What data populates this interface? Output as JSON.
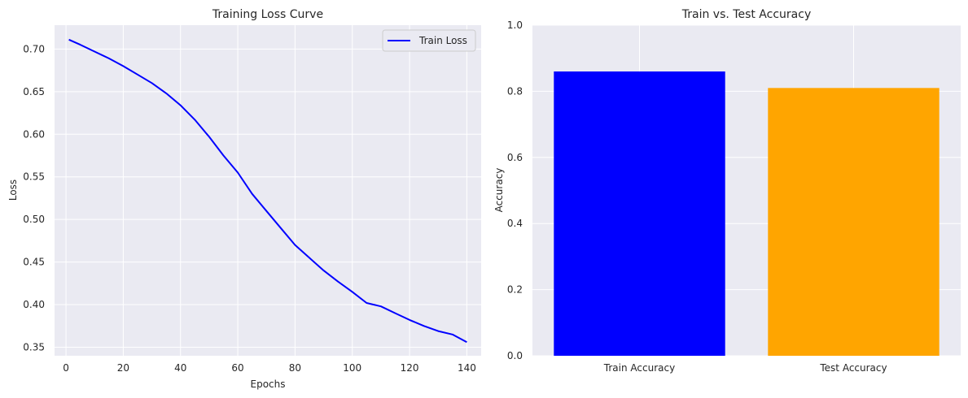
{
  "figure": {
    "background": "#ffffff",
    "axes_background": "#eaeaf2",
    "grid_color": "#ffffff"
  },
  "chart_data": [
    {
      "type": "line",
      "title": "Training Loss Curve",
      "xlabel": "Epochs",
      "ylabel": "Loss",
      "xlim": [
        -4,
        145
      ],
      "ylim": [
        0.34,
        0.728
      ],
      "xticks": [
        0,
        20,
        40,
        60,
        80,
        100,
        120,
        140
      ],
      "yticks": [
        0.35,
        0.4,
        0.45,
        0.5,
        0.55,
        0.6,
        0.65,
        0.7
      ],
      "ytick_labels": [
        "0.35",
        "0.40",
        "0.45",
        "0.50",
        "0.55",
        "0.60",
        "0.65",
        "0.70"
      ],
      "grid": true,
      "legend": "top-right",
      "series": [
        {
          "name": "Train Loss",
          "color": "#0000ff",
          "x": [
            1,
            5,
            10,
            15,
            20,
            25,
            30,
            35,
            40,
            45,
            50,
            55,
            60,
            65,
            70,
            75,
            80,
            85,
            90,
            95,
            100,
            105,
            110,
            115,
            120,
            125,
            130,
            135,
            140
          ],
          "y": [
            0.711,
            0.705,
            0.697,
            0.689,
            0.68,
            0.67,
            0.66,
            0.648,
            0.634,
            0.617,
            0.597,
            0.575,
            0.555,
            0.53,
            0.51,
            0.49,
            0.47,
            0.455,
            0.44,
            0.427,
            0.415,
            0.402,
            0.398,
            0.39,
            0.382,
            0.375,
            0.369,
            0.365,
            0.356
          ]
        }
      ]
    },
    {
      "type": "bar",
      "title": "Train vs. Test Accuracy",
      "xlabel": "",
      "ylabel": "Accuracy",
      "categories": [
        "Train Accuracy",
        "Test Accuracy"
      ],
      "values": [
        0.86,
        0.81
      ],
      "colors": [
        "#0000ff",
        "#ffa500"
      ],
      "ylim": [
        0.0,
        1.0
      ],
      "yticks": [
        0.0,
        0.2,
        0.4,
        0.6,
        0.8,
        1.0
      ],
      "ytick_labels": [
        "0.0",
        "0.2",
        "0.4",
        "0.6",
        "0.8",
        "1.0"
      ],
      "grid": true
    }
  ]
}
